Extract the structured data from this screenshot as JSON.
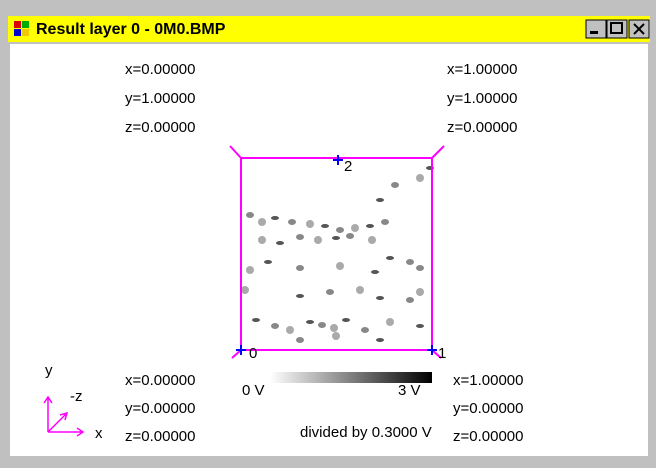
{
  "window": {
    "title": "Result layer 0 - 0M0.BMP"
  },
  "corners": {
    "top_left": [
      "x=0.00000",
      "y=1.00000",
      "z=0.00000"
    ],
    "top_right": [
      "x=1.00000",
      "y=1.00000",
      "z=0.00000"
    ],
    "bottom_left": [
      "x=0.00000",
      "y=0.00000",
      "z=0.00000"
    ],
    "bottom_right": [
      "x=1.00000",
      "y=0.00000",
      "z=0.00000"
    ]
  },
  "points": [
    "0",
    "1",
    "2"
  ],
  "axes": {
    "y": "y",
    "minus_z": "-z",
    "x": "x"
  },
  "colorbar": {
    "min_label": "0 V",
    "max_label": "3 V",
    "note": "divided by 0.3000 V"
  }
}
